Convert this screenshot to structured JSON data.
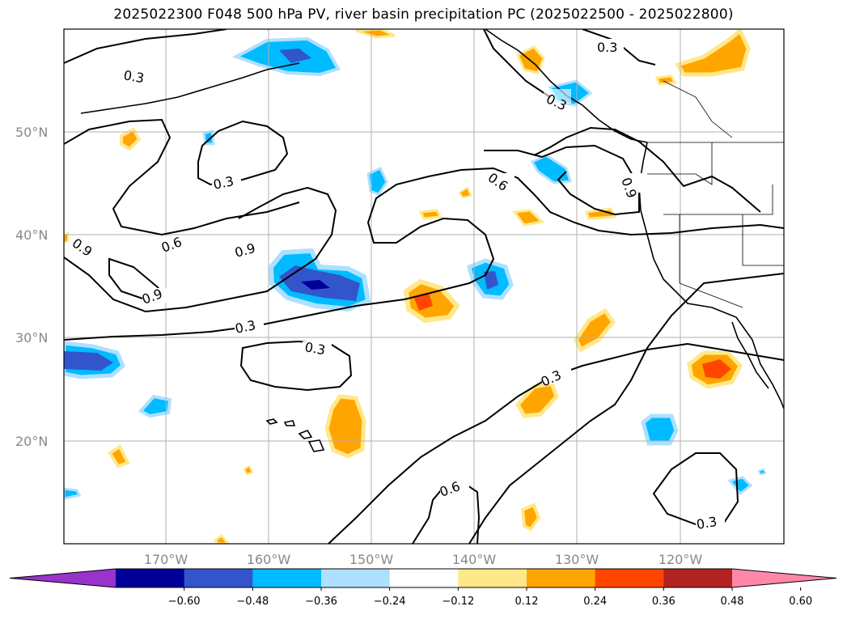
{
  "title": "2025022300 F048 500 hPa PV, river basin precipitation PC (2025022500 - 2025022800)",
  "lat_labels": [
    "50°N",
    "40°N",
    "30°N",
    "20°N"
  ],
  "lon_labels": [
    "170°W",
    "160°W",
    "150°W",
    "140°W",
    "130°W",
    "120°W"
  ],
  "colorbar": {
    "colors": [
      "#9933cc",
      "#000099",
      "#3355cc",
      "#00bbff",
      "#aee0ff",
      "#ffffff",
      "#ffe88a",
      "#ffa500",
      "#ff4500",
      "#b22222",
      "#ff88aa"
    ],
    "tick_labels": [
      "−0.60",
      "−0.48",
      "−0.36",
      "−0.24",
      "−0.12",
      "0.12",
      "0.24",
      "0.36",
      "0.48",
      "0.60"
    ]
  },
  "contour_labels": [
    "0.3",
    "0.3",
    "0.3",
    "0.6",
    "0.9",
    "0.9",
    "0.9",
    "0.6",
    "0.9",
    "0.3",
    "0.3",
    "0.3",
    "0.6",
    "0.3",
    "0.3"
  ]
}
